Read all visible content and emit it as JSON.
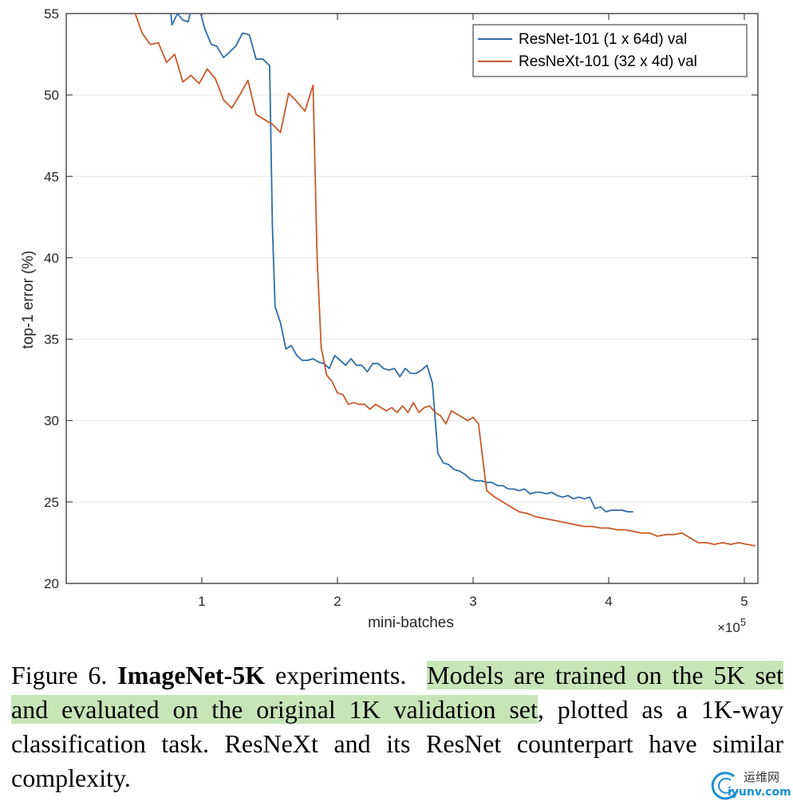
{
  "chart_data": {
    "type": "line",
    "xlabel": "mini-batches",
    "ylabel": "top-1 error (%)",
    "x_exponent_label": "×10",
    "x_exponent_power": "5",
    "xlim": [
      0,
      5.1
    ],
    "ylim": [
      20,
      55
    ],
    "xticks": [
      1,
      2,
      3,
      4,
      5
    ],
    "yticks": [
      20,
      25,
      30,
      35,
      40,
      45,
      50,
      55
    ],
    "grid": "horizontal",
    "legend_position": "top-right",
    "series": [
      {
        "name": "ResNet-101 (1 x 64d) val",
        "color": "#2f6da8",
        "points": [
          [
            0.76,
            55.9
          ],
          [
            0.78,
            54.3
          ],
          [
            0.82,
            55
          ],
          [
            0.86,
            54.6
          ],
          [
            0.9,
            54.5
          ],
          [
            0.94,
            56
          ],
          [
            0.98,
            55.4
          ],
          [
            1.02,
            54.1
          ],
          [
            1.07,
            53.1
          ],
          [
            1.11,
            53
          ],
          [
            1.16,
            52.3
          ],
          [
            1.2,
            52.6
          ],
          [
            1.25,
            53
          ],
          [
            1.3,
            53.8
          ],
          [
            1.35,
            53.7
          ],
          [
            1.4,
            52.2
          ],
          [
            1.45,
            52.2
          ],
          [
            1.5,
            51.8
          ],
          [
            1.52,
            42
          ],
          [
            1.54,
            37
          ],
          [
            1.58,
            36
          ],
          [
            1.62,
            34.4
          ],
          [
            1.66,
            34.6
          ],
          [
            1.7,
            34
          ],
          [
            1.74,
            33.7
          ],
          [
            1.78,
            33.7
          ],
          [
            1.82,
            33.8
          ],
          [
            1.86,
            33.6
          ],
          [
            1.9,
            33.5
          ],
          [
            1.94,
            33.2
          ],
          [
            1.98,
            34
          ],
          [
            2.02,
            33.7
          ],
          [
            2.06,
            33.4
          ],
          [
            2.1,
            33.8
          ],
          [
            2.14,
            33.4
          ],
          [
            2.18,
            33.4
          ],
          [
            2.22,
            33
          ],
          [
            2.26,
            33.5
          ],
          [
            2.3,
            33.5
          ],
          [
            2.34,
            33.2
          ],
          [
            2.38,
            33.1
          ],
          [
            2.42,
            33.2
          ],
          [
            2.46,
            32.7
          ],
          [
            2.5,
            33.2
          ],
          [
            2.54,
            32.9
          ],
          [
            2.58,
            32.9
          ],
          [
            2.62,
            33.1
          ],
          [
            2.66,
            33.4
          ],
          [
            2.7,
            32.3
          ],
          [
            2.74,
            28
          ],
          [
            2.78,
            27.4
          ],
          [
            2.82,
            27.3
          ],
          [
            2.86,
            27
          ],
          [
            2.9,
            26.9
          ],
          [
            2.94,
            26.7
          ],
          [
            2.98,
            26.4
          ],
          [
            3.02,
            26.3
          ],
          [
            3.06,
            26.3
          ],
          [
            3.1,
            26.2
          ],
          [
            3.14,
            26.2
          ],
          [
            3.18,
            26
          ],
          [
            3.22,
            26
          ],
          [
            3.26,
            25.8
          ],
          [
            3.3,
            25.8
          ],
          [
            3.34,
            25.7
          ],
          [
            3.38,
            25.8
          ],
          [
            3.42,
            25.5
          ],
          [
            3.46,
            25.6
          ],
          [
            3.5,
            25.6
          ],
          [
            3.54,
            25.5
          ],
          [
            3.58,
            25.6
          ],
          [
            3.62,
            25.4
          ],
          [
            3.66,
            25.3
          ],
          [
            3.7,
            25.4
          ],
          [
            3.74,
            25.2
          ],
          [
            3.78,
            25.3
          ],
          [
            3.82,
            25.2
          ],
          [
            3.86,
            25.3
          ],
          [
            3.9,
            24.6
          ],
          [
            3.94,
            24.7
          ],
          [
            3.98,
            24.4
          ],
          [
            4.02,
            24.5
          ],
          [
            4.06,
            24.5
          ],
          [
            4.1,
            24.5
          ],
          [
            4.14,
            24.4
          ],
          [
            4.18,
            24.4
          ]
        ]
      },
      {
        "name": "ResNeXt-101 (32 x 4d) val",
        "color": "#c8592b",
        "points": [
          [
            0.5,
            55.2
          ],
          [
            0.56,
            53.8
          ],
          [
            0.62,
            53.1
          ],
          [
            0.68,
            53.2
          ],
          [
            0.74,
            52
          ],
          [
            0.8,
            52.5
          ],
          [
            0.86,
            50.8
          ],
          [
            0.92,
            51.2
          ],
          [
            0.98,
            50.7
          ],
          [
            1.04,
            51.6
          ],
          [
            1.1,
            51
          ],
          [
            1.16,
            49.7
          ],
          [
            1.22,
            49.2
          ],
          [
            1.28,
            50
          ],
          [
            1.34,
            50.9
          ],
          [
            1.4,
            48.8
          ],
          [
            1.46,
            48.5
          ],
          [
            1.52,
            48.2
          ],
          [
            1.58,
            47.7
          ],
          [
            1.64,
            50.1
          ],
          [
            1.7,
            49.6
          ],
          [
            1.76,
            49
          ],
          [
            1.82,
            50.6
          ],
          [
            1.85,
            40
          ],
          [
            1.88,
            34.5
          ],
          [
            1.92,
            32.8
          ],
          [
            1.96,
            32.4
          ],
          [
            2.0,
            31.7
          ],
          [
            2.04,
            31.6
          ],
          [
            2.08,
            31
          ],
          [
            2.12,
            31.1
          ],
          [
            2.16,
            31
          ],
          [
            2.2,
            31
          ],
          [
            2.24,
            30.7
          ],
          [
            2.28,
            31
          ],
          [
            2.32,
            30.8
          ],
          [
            2.36,
            30.6
          ],
          [
            2.4,
            30.8
          ],
          [
            2.44,
            30.5
          ],
          [
            2.48,
            30.9
          ],
          [
            2.52,
            30.5
          ],
          [
            2.56,
            31.1
          ],
          [
            2.6,
            30.5
          ],
          [
            2.64,
            30.8
          ],
          [
            2.68,
            30.9
          ],
          [
            2.72,
            30.5
          ],
          [
            2.76,
            30.3
          ],
          [
            2.8,
            29.8
          ],
          [
            2.84,
            30.6
          ],
          [
            2.88,
            30.4
          ],
          [
            2.92,
            30.2
          ],
          [
            2.96,
            30
          ],
          [
            3.0,
            30.2
          ],
          [
            3.04,
            29.8
          ],
          [
            3.1,
            25.7
          ],
          [
            3.16,
            25.3
          ],
          [
            3.22,
            25
          ],
          [
            3.28,
            24.7
          ],
          [
            3.34,
            24.4
          ],
          [
            3.4,
            24.3
          ],
          [
            3.46,
            24.1
          ],
          [
            3.52,
            24
          ],
          [
            3.58,
            23.9
          ],
          [
            3.64,
            23.8
          ],
          [
            3.7,
            23.7
          ],
          [
            3.76,
            23.6
          ],
          [
            3.82,
            23.5
          ],
          [
            3.88,
            23.5
          ],
          [
            3.94,
            23.4
          ],
          [
            4.0,
            23.4
          ],
          [
            4.06,
            23.3
          ],
          [
            4.12,
            23.3
          ],
          [
            4.18,
            23.2
          ],
          [
            4.24,
            23.1
          ],
          [
            4.3,
            23.1
          ],
          [
            4.36,
            22.9
          ],
          [
            4.42,
            23
          ],
          [
            4.48,
            23
          ],
          [
            4.54,
            23.1
          ],
          [
            4.6,
            22.8
          ],
          [
            4.66,
            22.5
          ],
          [
            4.72,
            22.5
          ],
          [
            4.78,
            22.4
          ],
          [
            4.84,
            22.5
          ],
          [
            4.9,
            22.4
          ],
          [
            4.96,
            22.5
          ],
          [
            5.02,
            22.4
          ],
          [
            5.08,
            22.3
          ]
        ]
      }
    ]
  },
  "caption": {
    "figure_label": "Figure 6.",
    "title_bold": "ImageNet-5K",
    "title_rest": " experiments.",
    "highlighted": "Models are trained on the 5K set and evaluated on the original 1K validation set",
    "rest": ", plotted as a 1K-way classification task. ResNeXt and its ResNet counterpart have similar complexity."
  },
  "watermark": {
    "top": "运维网",
    "bottom": "iyunv.com"
  }
}
